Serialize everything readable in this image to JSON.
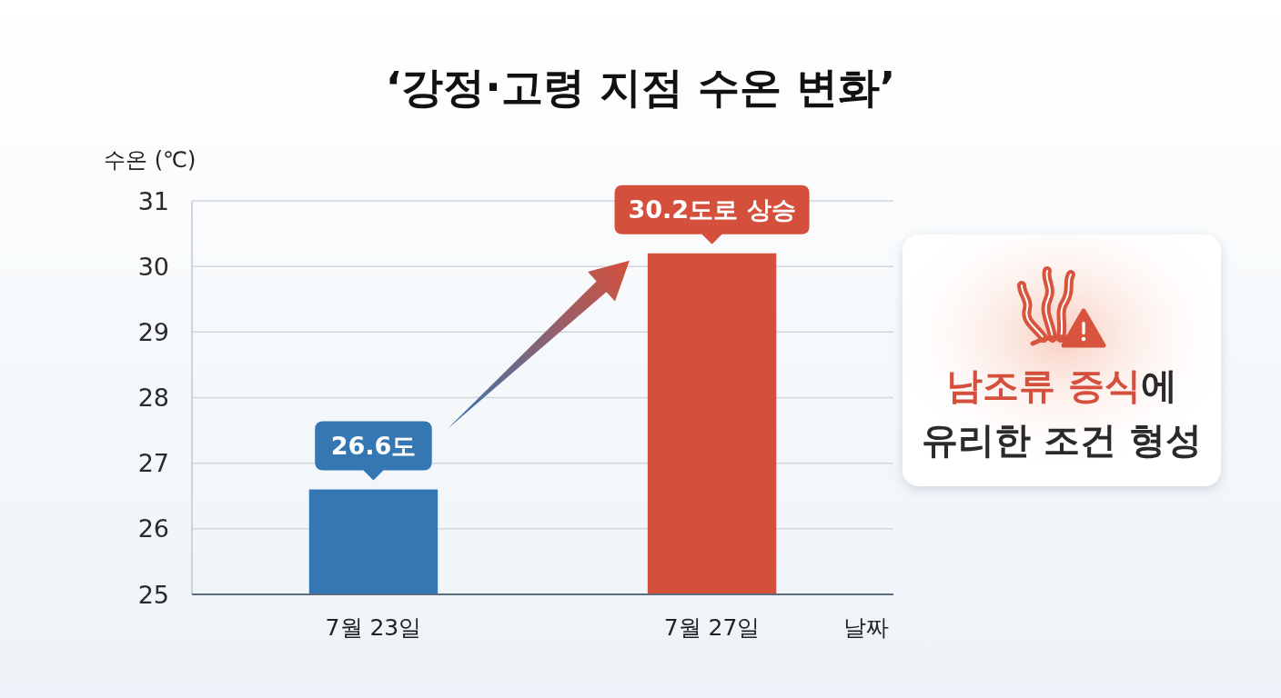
{
  "chart_data": {
    "type": "bar",
    "title": "‘강정·고령 지점 수온 변화’",
    "ylabel": "수온 (℃)",
    "xlabel": "날짜",
    "categories": [
      "7월 23일",
      "7월 27일"
    ],
    "values": [
      26.6,
      30.2
    ],
    "colors": [
      "#3577b3",
      "#d4503c"
    ],
    "value_labels": [
      "26.6도",
      "30.2도로 상승"
    ],
    "ylim": [
      25,
      31
    ],
    "yticks": [
      25,
      26,
      27,
      28,
      29,
      30,
      31
    ],
    "grid": "y",
    "annotations": [
      "남조류 증식에 유리한 조건 형성"
    ]
  }
}
